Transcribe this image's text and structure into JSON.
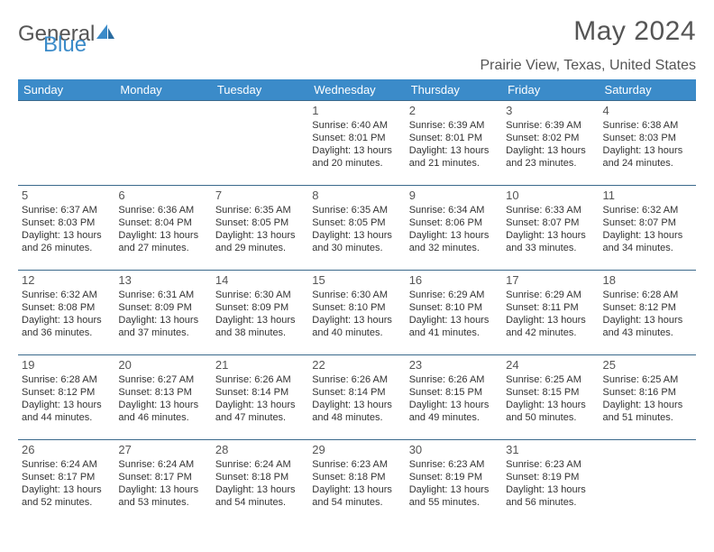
{
  "logo": {
    "text_a": "General",
    "text_b": "Blue"
  },
  "title": "May 2024",
  "location": "Prairie View, Texas, United States",
  "header_bg": "#3b8bc9",
  "header_fg": "#ffffff",
  "row_border": "#3b6a8c",
  "text_color": "#333333",
  "muted_color": "#555555",
  "weekdays": [
    "Sunday",
    "Monday",
    "Tuesday",
    "Wednesday",
    "Thursday",
    "Friday",
    "Saturday"
  ],
  "weeks": [
    [
      null,
      null,
      null,
      {
        "n": "1",
        "sr": "6:40 AM",
        "ss": "8:01 PM",
        "dl": "13 hours and 20 minutes."
      },
      {
        "n": "2",
        "sr": "6:39 AM",
        "ss": "8:01 PM",
        "dl": "13 hours and 21 minutes."
      },
      {
        "n": "3",
        "sr": "6:39 AM",
        "ss": "8:02 PM",
        "dl": "13 hours and 23 minutes."
      },
      {
        "n": "4",
        "sr": "6:38 AM",
        "ss": "8:03 PM",
        "dl": "13 hours and 24 minutes."
      }
    ],
    [
      {
        "n": "5",
        "sr": "6:37 AM",
        "ss": "8:03 PM",
        "dl": "13 hours and 26 minutes."
      },
      {
        "n": "6",
        "sr": "6:36 AM",
        "ss": "8:04 PM",
        "dl": "13 hours and 27 minutes."
      },
      {
        "n": "7",
        "sr": "6:35 AM",
        "ss": "8:05 PM",
        "dl": "13 hours and 29 minutes."
      },
      {
        "n": "8",
        "sr": "6:35 AM",
        "ss": "8:05 PM",
        "dl": "13 hours and 30 minutes."
      },
      {
        "n": "9",
        "sr": "6:34 AM",
        "ss": "8:06 PM",
        "dl": "13 hours and 32 minutes."
      },
      {
        "n": "10",
        "sr": "6:33 AM",
        "ss": "8:07 PM",
        "dl": "13 hours and 33 minutes."
      },
      {
        "n": "11",
        "sr": "6:32 AM",
        "ss": "8:07 PM",
        "dl": "13 hours and 34 minutes."
      }
    ],
    [
      {
        "n": "12",
        "sr": "6:32 AM",
        "ss": "8:08 PM",
        "dl": "13 hours and 36 minutes."
      },
      {
        "n": "13",
        "sr": "6:31 AM",
        "ss": "8:09 PM",
        "dl": "13 hours and 37 minutes."
      },
      {
        "n": "14",
        "sr": "6:30 AM",
        "ss": "8:09 PM",
        "dl": "13 hours and 38 minutes."
      },
      {
        "n": "15",
        "sr": "6:30 AM",
        "ss": "8:10 PM",
        "dl": "13 hours and 40 minutes."
      },
      {
        "n": "16",
        "sr": "6:29 AM",
        "ss": "8:10 PM",
        "dl": "13 hours and 41 minutes."
      },
      {
        "n": "17",
        "sr": "6:29 AM",
        "ss": "8:11 PM",
        "dl": "13 hours and 42 minutes."
      },
      {
        "n": "18",
        "sr": "6:28 AM",
        "ss": "8:12 PM",
        "dl": "13 hours and 43 minutes."
      }
    ],
    [
      {
        "n": "19",
        "sr": "6:28 AM",
        "ss": "8:12 PM",
        "dl": "13 hours and 44 minutes."
      },
      {
        "n": "20",
        "sr": "6:27 AM",
        "ss": "8:13 PM",
        "dl": "13 hours and 46 minutes."
      },
      {
        "n": "21",
        "sr": "6:26 AM",
        "ss": "8:14 PM",
        "dl": "13 hours and 47 minutes."
      },
      {
        "n": "22",
        "sr": "6:26 AM",
        "ss": "8:14 PM",
        "dl": "13 hours and 48 minutes."
      },
      {
        "n": "23",
        "sr": "6:26 AM",
        "ss": "8:15 PM",
        "dl": "13 hours and 49 minutes."
      },
      {
        "n": "24",
        "sr": "6:25 AM",
        "ss": "8:15 PM",
        "dl": "13 hours and 50 minutes."
      },
      {
        "n": "25",
        "sr": "6:25 AM",
        "ss": "8:16 PM",
        "dl": "13 hours and 51 minutes."
      }
    ],
    [
      {
        "n": "26",
        "sr": "6:24 AM",
        "ss": "8:17 PM",
        "dl": "13 hours and 52 minutes."
      },
      {
        "n": "27",
        "sr": "6:24 AM",
        "ss": "8:17 PM",
        "dl": "13 hours and 53 minutes."
      },
      {
        "n": "28",
        "sr": "6:24 AM",
        "ss": "8:18 PM",
        "dl": "13 hours and 54 minutes."
      },
      {
        "n": "29",
        "sr": "6:23 AM",
        "ss": "8:18 PM",
        "dl": "13 hours and 54 minutes."
      },
      {
        "n": "30",
        "sr": "6:23 AM",
        "ss": "8:19 PM",
        "dl": "13 hours and 55 minutes."
      },
      {
        "n": "31",
        "sr": "6:23 AM",
        "ss": "8:19 PM",
        "dl": "13 hours and 56 minutes."
      },
      null
    ]
  ],
  "labels": {
    "sunrise": "Sunrise:",
    "sunset": "Sunset:",
    "daylight": "Daylight:"
  }
}
